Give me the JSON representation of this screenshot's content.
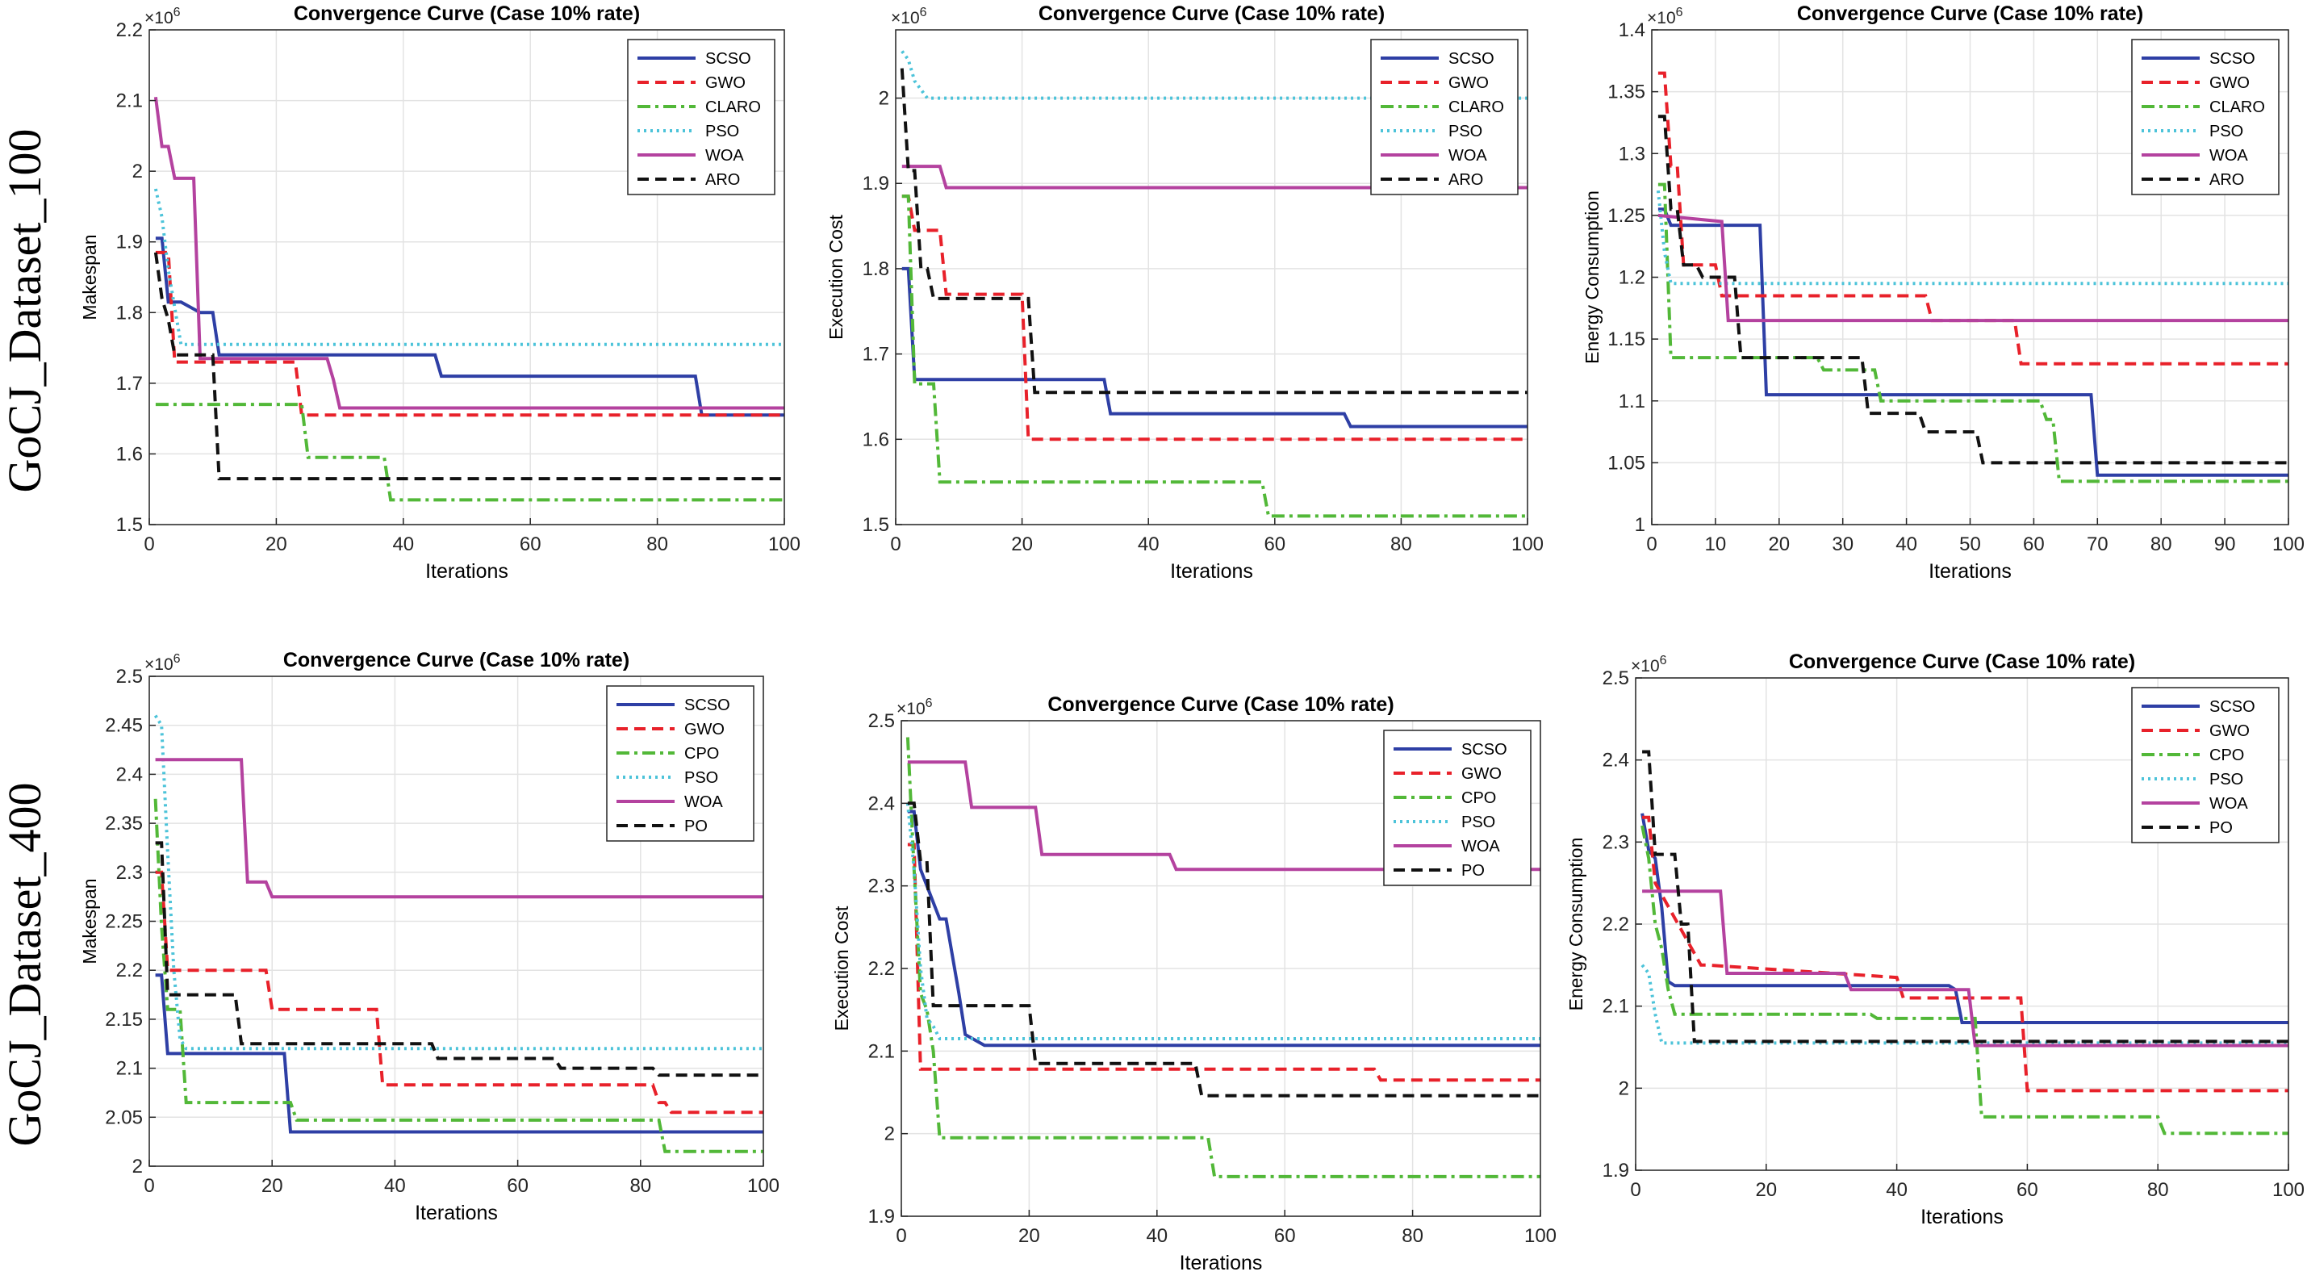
{
  "row_labels": [
    "GoCJ_Dataset_100",
    "GoCJ_Dataset_400"
  ],
  "chart_data": [
    {
      "type": "line",
      "title": "Convergence Curve (Case 10% rate)",
      "xlabel": "Iterations",
      "ylabel": "Makespan",
      "multiplier": "×10^6",
      "xlim": [
        0,
        100
      ],
      "ylim": [
        1.5,
        2.2
      ],
      "xticks": [
        0,
        20,
        40,
        60,
        80,
        100
      ],
      "yticks": [
        1.5,
        1.6,
        1.7,
        1.8,
        1.9,
        2,
        2.1,
        2.2
      ],
      "series": [
        {
          "name": "SCSO",
          "color": "#2e3fa5",
          "dash": "solid",
          "x": [
            1,
            2,
            3,
            5,
            8,
            10,
            11,
            45,
            46,
            86,
            87,
            100
          ],
          "y": [
            1.905,
            1.905,
            1.815,
            1.815,
            1.8,
            1.8,
            1.74,
            1.74,
            1.71,
            1.71,
            1.655,
            1.655
          ]
        },
        {
          "name": "GWO",
          "color": "#e8212a",
          "dash": "dash",
          "x": [
            1,
            3,
            4,
            23,
            24,
            100
          ],
          "y": [
            1.885,
            1.885,
            1.73,
            1.73,
            1.655,
            1.655
          ]
        },
        {
          "name": "CLARO",
          "color": "#52b838",
          "dash": "dashdot",
          "x": [
            1,
            24,
            25,
            37,
            38,
            100
          ],
          "y": [
            1.67,
            1.67,
            1.595,
            1.595,
            1.535,
            1.535
          ]
        },
        {
          "name": "PSO",
          "color": "#4cc3d9",
          "dash": "dot",
          "x": [
            1,
            2,
            3,
            5,
            100
          ],
          "y": [
            1.975,
            1.935,
            1.86,
            1.755,
            1.755
          ]
        },
        {
          "name": "WOA",
          "color": "#b4429f",
          "dash": "solid",
          "x": [
            1,
            2,
            3,
            4,
            5,
            6,
            7,
            8,
            9,
            28,
            29,
            30,
            100
          ],
          "y": [
            2.105,
            2.035,
            2.035,
            1.99,
            1.99,
            1.99,
            1.99,
            1.735,
            1.735,
            1.735,
            1.705,
            1.665,
            1.665
          ]
        },
        {
          "name": "ARO",
          "color": "#111111",
          "dash": "dash",
          "x": [
            1,
            2,
            3,
            4,
            10,
            11,
            100
          ],
          "y": [
            1.885,
            1.82,
            1.79,
            1.74,
            1.74,
            1.565,
            1.565
          ]
        }
      ]
    },
    {
      "type": "line",
      "title": "Convergence Curve (Case 10% rate)",
      "xlabel": "Iterations",
      "ylabel": "Execution Cost",
      "multiplier": "×10^6",
      "xlim": [
        0,
        100
      ],
      "ylim": [
        1.5,
        2.08
      ],
      "xticks": [
        0,
        20,
        40,
        60,
        80,
        100
      ],
      "yticks": [
        1.5,
        1.6,
        1.7,
        1.8,
        1.9,
        2
      ],
      "series": [
        {
          "name": "SCSO",
          "color": "#2e3fa5",
          "dash": "solid",
          "x": [
            1,
            2,
            3,
            33,
            34,
            71,
            72,
            100
          ],
          "y": [
            1.8,
            1.8,
            1.67,
            1.67,
            1.63,
            1.63,
            1.615,
            1.615
          ]
        },
        {
          "name": "GWO",
          "color": "#e8212a",
          "dash": "dash",
          "x": [
            1,
            2,
            3,
            7,
            8,
            20,
            21,
            100
          ],
          "y": [
            1.885,
            1.885,
            1.845,
            1.845,
            1.77,
            1.77,
            1.6,
            1.6
          ]
        },
        {
          "name": "CLARO",
          "color": "#52b838",
          "dash": "dashdot",
          "x": [
            1,
            2,
            3,
            6,
            7,
            58,
            59,
            100
          ],
          "y": [
            1.885,
            1.885,
            1.665,
            1.665,
            1.55,
            1.55,
            1.51,
            1.51
          ]
        },
        {
          "name": "PSO",
          "color": "#4cc3d9",
          "dash": "dot",
          "x": [
            1,
            2,
            3,
            5,
            100
          ],
          "y": [
            2.055,
            2.045,
            2.02,
            2.0,
            2.0
          ]
        },
        {
          "name": "WOA",
          "color": "#b4429f",
          "dash": "solid",
          "x": [
            1,
            7,
            8,
            100
          ],
          "y": [
            1.92,
            1.92,
            1.895,
            1.895
          ]
        },
        {
          "name": "ARO",
          "color": "#111111",
          "dash": "dash",
          "x": [
            1,
            2,
            3,
            4,
            5,
            6,
            21,
            22,
            100
          ],
          "y": [
            2.035,
            1.915,
            1.915,
            1.8,
            1.8,
            1.765,
            1.765,
            1.655,
            1.655
          ]
        }
      ]
    },
    {
      "type": "line",
      "title": "Convergence Curve (Case 10% rate)",
      "xlabel": "Iterations",
      "ylabel": "Energy Consumption",
      "multiplier": "×10^6",
      "xlim": [
        0,
        100
      ],
      "ylim": [
        1.0,
        1.4
      ],
      "xticks": [
        0,
        10,
        20,
        30,
        40,
        50,
        60,
        70,
        80,
        90,
        100
      ],
      "yticks": [
        1,
        1.05,
        1.1,
        1.15,
        1.2,
        1.25,
        1.3,
        1.35,
        1.4
      ],
      "series": [
        {
          "name": "SCSO",
          "color": "#2e3fa5",
          "dash": "solid",
          "x": [
            1,
            2,
            3,
            11,
            12,
            17,
            18,
            69,
            70,
            100
          ],
          "y": [
            1.255,
            1.255,
            1.242,
            1.242,
            1.242,
            1.242,
            1.105,
            1.105,
            1.04,
            1.04
          ]
        },
        {
          "name": "GWO",
          "color": "#e8212a",
          "dash": "dash",
          "x": [
            1,
            2,
            3,
            4,
            5,
            6,
            10,
            11,
            43,
            44,
            57,
            58,
            100
          ],
          "y": [
            1.365,
            1.365,
            1.29,
            1.29,
            1.21,
            1.21,
            1.21,
            1.185,
            1.185,
            1.165,
            1.165,
            1.13,
            1.13
          ]
        },
        {
          "name": "CLARO",
          "color": "#52b838",
          "dash": "dashdot",
          "x": [
            1,
            2,
            3,
            26,
            27,
            35,
            36,
            61,
            62,
            63,
            64,
            100
          ],
          "y": [
            1.275,
            1.275,
            1.135,
            1.135,
            1.125,
            1.125,
            1.1,
            1.1,
            1.085,
            1.085,
            1.035,
            1.035
          ]
        },
        {
          "name": "PSO",
          "color": "#4cc3d9",
          "dash": "dot",
          "x": [
            1,
            2,
            3,
            100
          ],
          "y": [
            1.27,
            1.22,
            1.195,
            1.195
          ]
        },
        {
          "name": "WOA",
          "color": "#b4429f",
          "dash": "solid",
          "x": [
            1,
            11,
            12,
            100
          ],
          "y": [
            1.25,
            1.245,
            1.165,
            1.165
          ]
        },
        {
          "name": "ARO",
          "color": "#111111",
          "dash": "dash",
          "x": [
            1,
            2,
            3,
            4,
            5,
            7,
            8,
            13,
            14,
            33,
            34,
            42,
            43,
            51,
            52,
            100
          ],
          "y": [
            1.33,
            1.33,
            1.255,
            1.255,
            1.21,
            1.21,
            1.2,
            1.2,
            1.135,
            1.135,
            1.09,
            1.09,
            1.075,
            1.075,
            1.05,
            1.05
          ]
        }
      ]
    },
    {
      "type": "line",
      "title": "Convergence Curve (Case 10% rate)",
      "xlabel": "Iterations",
      "ylabel": "Makespan",
      "multiplier": "×10^6",
      "xlim": [
        0,
        100
      ],
      "ylim": [
        2.0,
        2.5
      ],
      "xticks": [
        0,
        20,
        40,
        60,
        80,
        100
      ],
      "yticks": [
        2,
        2.05,
        2.1,
        2.15,
        2.2,
        2.25,
        2.3,
        2.35,
        2.4,
        2.45,
        2.5
      ],
      "series": [
        {
          "name": "SCSO",
          "color": "#2e3fa5",
          "dash": "solid",
          "x": [
            1,
            2,
            3,
            22,
            23,
            100
          ],
          "y": [
            2.195,
            2.195,
            2.115,
            2.115,
            2.035,
            2.035
          ]
        },
        {
          "name": "GWO",
          "color": "#e8212a",
          "dash": "dash",
          "x": [
            1,
            2,
            3,
            19,
            20,
            37,
            38,
            82,
            83,
            84,
            85,
            100
          ],
          "y": [
            2.3,
            2.3,
            2.2,
            2.2,
            2.16,
            2.16,
            2.083,
            2.083,
            2.065,
            2.065,
            2.055,
            2.055
          ]
        },
        {
          "name": "CPO",
          "color": "#52b838",
          "dash": "dashdot",
          "x": [
            1,
            2,
            3,
            5,
            6,
            23,
            24,
            83,
            84,
            100
          ],
          "y": [
            2.375,
            2.245,
            2.16,
            2.16,
            2.065,
            2.065,
            2.047,
            2.047,
            2.015,
            2.015
          ]
        },
        {
          "name": "PSO",
          "color": "#4cc3d9",
          "dash": "dot",
          "x": [
            1,
            2,
            3,
            4,
            5,
            6,
            100
          ],
          "y": [
            2.46,
            2.45,
            2.32,
            2.2,
            2.13,
            2.12,
            2.12
          ]
        },
        {
          "name": "WOA",
          "color": "#b4429f",
          "dash": "solid",
          "x": [
            1,
            15,
            16,
            19,
            20,
            100
          ],
          "y": [
            2.415,
            2.415,
            2.29,
            2.29,
            2.275,
            2.275
          ]
        },
        {
          "name": "PO",
          "color": "#111111",
          "dash": "dash",
          "x": [
            1,
            2,
            3,
            14,
            15,
            46,
            47,
            66,
            67,
            82,
            83,
            100
          ],
          "y": [
            2.33,
            2.33,
            2.175,
            2.175,
            2.125,
            2.125,
            2.11,
            2.11,
            2.1,
            2.1,
            2.093,
            2.093
          ]
        }
      ]
    },
    {
      "type": "line",
      "title": "Convergence Curve (Case 10% rate)",
      "xlabel": "Iterations",
      "ylabel": "Execution Cost",
      "multiplier": "×10^6",
      "xlim": [
        0,
        100
      ],
      "ylim": [
        1.9,
        2.5
      ],
      "xticks": [
        0,
        20,
        40,
        60,
        80,
        100
      ],
      "yticks": [
        1.9,
        2,
        2.1,
        2.2,
        2.3,
        2.4,
        2.5
      ],
      "series": [
        {
          "name": "SCSO",
          "color": "#2e3fa5",
          "dash": "solid",
          "x": [
            1,
            2,
            3,
            4,
            6,
            7,
            9,
            10,
            13,
            100
          ],
          "y": [
            2.39,
            2.39,
            2.32,
            2.3,
            2.26,
            2.26,
            2.17,
            2.12,
            2.107,
            2.107
          ]
        },
        {
          "name": "GWO",
          "color": "#e8212a",
          "dash": "dash",
          "x": [
            1,
            2,
            3,
            74,
            75,
            100
          ],
          "y": [
            2.35,
            2.35,
            2.078,
            2.078,
            2.065,
            2.065
          ]
        },
        {
          "name": "CPO",
          "color": "#52b838",
          "dash": "dashdot",
          "x": [
            1,
            2,
            3,
            4,
            5,
            6,
            48,
            49,
            100
          ],
          "y": [
            2.48,
            2.32,
            2.17,
            2.15,
            2.1,
            1.995,
            1.995,
            1.948,
            1.948
          ]
        },
        {
          "name": "PSO",
          "color": "#4cc3d9",
          "dash": "dot",
          "x": [
            1,
            2,
            3,
            4,
            5,
            6,
            100
          ],
          "y": [
            2.4,
            2.32,
            2.2,
            2.14,
            2.13,
            2.115,
            2.115
          ]
        },
        {
          "name": "WOA",
          "color": "#b4429f",
          "dash": "solid",
          "x": [
            1,
            10,
            11,
            21,
            22,
            42,
            43,
            100
          ],
          "y": [
            2.45,
            2.45,
            2.395,
            2.395,
            2.338,
            2.338,
            2.32,
            2.32
          ]
        },
        {
          "name": "PO",
          "color": "#111111",
          "dash": "dash",
          "x": [
            1,
            2,
            3,
            4,
            5,
            20,
            21,
            46,
            47,
            100
          ],
          "y": [
            2.4,
            2.4,
            2.33,
            2.33,
            2.155,
            2.155,
            2.085,
            2.085,
            2.046,
            2.046
          ]
        }
      ]
    },
    {
      "type": "line",
      "title": "Convergence Curve (Case 10% rate)",
      "xlabel": "Iterations",
      "ylabel": "Energy Consumption",
      "multiplier": "×10^6",
      "xlim": [
        0,
        100
      ],
      "ylim": [
        1.9,
        2.5
      ],
      "xticks": [
        0,
        20,
        40,
        60,
        80,
        100
      ],
      "yticks": [
        1.9,
        2,
        2.1,
        2.2,
        2.3,
        2.4,
        2.5
      ],
      "series": [
        {
          "name": "SCSO",
          "color": "#2e3fa5",
          "dash": "solid",
          "x": [
            1,
            2,
            3,
            4,
            5,
            6,
            48,
            49,
            50,
            100
          ],
          "y": [
            2.335,
            2.29,
            2.28,
            2.22,
            2.13,
            2.125,
            2.125,
            2.12,
            2.08,
            2.08
          ]
        },
        {
          "name": "GWO",
          "color": "#e8212a",
          "dash": "dash",
          "x": [
            1,
            2,
            3,
            10,
            11,
            40,
            41,
            59,
            60,
            100
          ],
          "y": [
            2.33,
            2.33,
            2.25,
            2.15,
            2.15,
            2.135,
            2.11,
            2.11,
            1.997,
            1.997
          ]
        },
        {
          "name": "CPO",
          "color": "#52b838",
          "dash": "dashdot",
          "x": [
            1,
            2,
            3,
            4,
            5,
            6,
            36,
            37,
            52,
            53,
            80,
            81,
            100
          ],
          "y": [
            2.32,
            2.28,
            2.2,
            2.17,
            2.12,
            2.09,
            2.09,
            2.085,
            2.085,
            1.965,
            1.965,
            1.945,
            1.945
          ]
        },
        {
          "name": "PSO",
          "color": "#4cc3d9",
          "dash": "dot",
          "x": [
            1,
            2,
            3,
            4,
            100
          ],
          "y": [
            2.15,
            2.14,
            2.09,
            2.055,
            2.055
          ]
        },
        {
          "name": "WOA",
          "color": "#b4429f",
          "dash": "solid",
          "x": [
            1,
            13,
            14,
            32,
            33,
            51,
            52,
            100
          ],
          "y": [
            2.24,
            2.24,
            2.14,
            2.14,
            2.12,
            2.12,
            2.052,
            2.052
          ]
        },
        {
          "name": "PO",
          "color": "#111111",
          "dash": "dash",
          "x": [
            1,
            2,
            3,
            6,
            7,
            8,
            9,
            100
          ],
          "y": [
            2.41,
            2.41,
            2.285,
            2.285,
            2.2,
            2.2,
            2.057,
            2.057
          ]
        }
      ]
    }
  ]
}
